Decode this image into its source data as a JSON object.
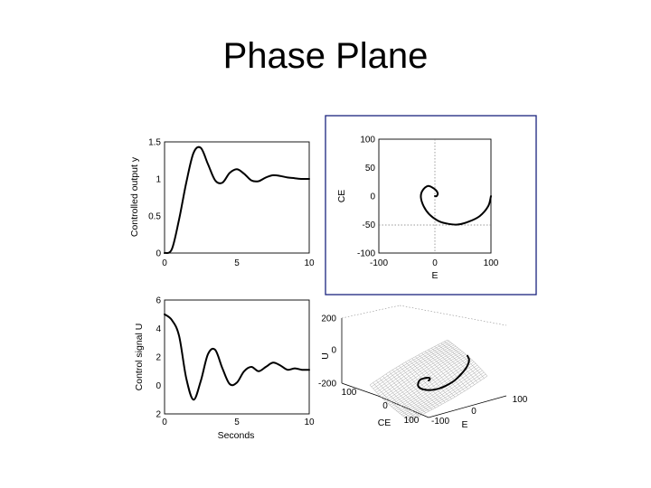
{
  "title": "Phase Plane",
  "panels": {
    "top_left": {
      "ylabel": "Controlled output y",
      "yticks": [
        "1.5",
        "1",
        "0.5",
        "0"
      ],
      "xticks": [
        "0",
        "5",
        "10"
      ]
    },
    "bottom_left": {
      "ylabel": "Control signal U",
      "yticks": [
        "6",
        "4",
        "2",
        "0",
        "2"
      ],
      "xticks": [
        "0",
        "5",
        "10"
      ],
      "xlabel": "Seconds"
    },
    "top_right": {
      "ylabel": "CE",
      "xlabel": "E",
      "yticks": [
        "100",
        "50",
        "0",
        "-50",
        "-100"
      ],
      "xticks": [
        "-100",
        "0",
        "100"
      ],
      "highlight_color": "#1a237e"
    },
    "bottom_right": {
      "zlabel": "U",
      "zticks": [
        "200",
        "0",
        "-200"
      ],
      "ce_label": "CE",
      "ce_ticks": [
        "100",
        "0",
        "100"
      ],
      "e_label": "E",
      "e_ticks": [
        "-100",
        "0",
        "100"
      ]
    }
  },
  "chart_data": [
    {
      "type": "line",
      "x": [
        0,
        0.5,
        1,
        1.5,
        2,
        2.5,
        3,
        3.5,
        4,
        4.5,
        5,
        5.5,
        6,
        6.5,
        7,
        7.5,
        8,
        8.5,
        9,
        9.5,
        10
      ],
      "y": [
        0.0,
        0.05,
        0.45,
        0.95,
        1.35,
        1.42,
        1.2,
        0.98,
        0.95,
        1.08,
        1.13,
        1.07,
        0.98,
        0.97,
        1.02,
        1.05,
        1.04,
        1.02,
        1.01,
        1.0,
        1.0
      ],
      "xlabel": "",
      "ylabel": "Controlled output y",
      "xlim": [
        0,
        10
      ],
      "ylim": [
        0,
        1.5
      ]
    },
    {
      "type": "line",
      "x": [
        0,
        0.5,
        1,
        1.5,
        2,
        2.5,
        3,
        3.5,
        4,
        4.5,
        5,
        5.5,
        6,
        6.5,
        7,
        7.5,
        8,
        8.5,
        9,
        9.5,
        10
      ],
      "y": [
        5.0,
        4.6,
        3.5,
        0.5,
        -1.0,
        0.3,
        2.2,
        2.5,
        1.2,
        0.1,
        0.2,
        1.0,
        1.3,
        1.0,
        1.3,
        1.6,
        1.4,
        1.1,
        1.2,
        1.1,
        1.1
      ],
      "xlabel": "Seconds",
      "ylabel": "Control signal U",
      "xlim": [
        0,
        10
      ],
      "ylim": [
        -2,
        6
      ]
    },
    {
      "type": "line",
      "x": [
        100,
        95,
        80,
        60,
        40,
        20,
        5,
        -10,
        -20,
        -25,
        -22,
        -12,
        0,
        5,
        3,
        0
      ],
      "y": [
        0,
        -18,
        -35,
        -45,
        -50,
        -48,
        -43,
        -32,
        -18,
        -2,
        10,
        18,
        12,
        5,
        0,
        0
      ],
      "xlabel": "E",
      "ylabel": "CE",
      "xlim": [
        -100,
        100
      ],
      "ylim": [
        -100,
        100
      ]
    }
  ]
}
